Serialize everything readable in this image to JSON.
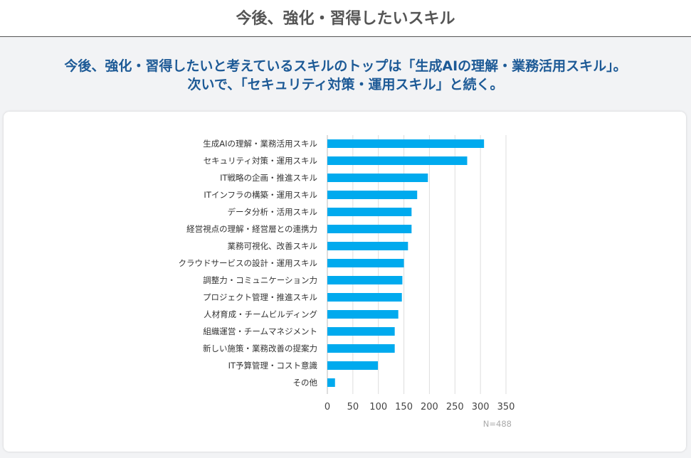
{
  "header": {
    "title": "今後、強化・習得したいスキル"
  },
  "summary": {
    "line1": "今後、強化・習得したいと考えているスキルのトップは「生成AIの理解・業務活用スキル」。",
    "line2": "次いで、「セキュリティ対策・運用スキル」と続く。"
  },
  "chart_data": {
    "type": "bar",
    "orientation": "horizontal",
    "title": "",
    "xlabel": "",
    "ylabel": "",
    "categories": [
      "生成AIの理解・業務活用スキル",
      "セキュリティ対策・運用スキル",
      "IT戦略の企画・推進スキル",
      "ITインフラの構築・運用スキル",
      "データ分析・活用スキル",
      "経営視点の理解・経営層との連携力",
      "業務可視化、改善スキル",
      "クラウドサービスの設計・運用スキル",
      "調整力・コミュニケーション力",
      "プロジェクト管理・推進スキル",
      "人材育成・チームビルディング",
      "組織運営・チームマネジメント",
      "新しい施策・業務改善の提案力",
      "IT予算管理・コスト意識",
      "その他"
    ],
    "values": [
      307,
      274,
      197,
      176,
      165,
      165,
      158,
      150,
      147,
      146,
      139,
      132,
      132,
      99,
      15
    ],
    "xlim": [
      0,
      350
    ],
    "xticks": [
      0,
      50,
      100,
      150,
      200,
      250,
      300,
      350
    ],
    "grid": true,
    "note": "N=488",
    "color": "#00aaee"
  }
}
